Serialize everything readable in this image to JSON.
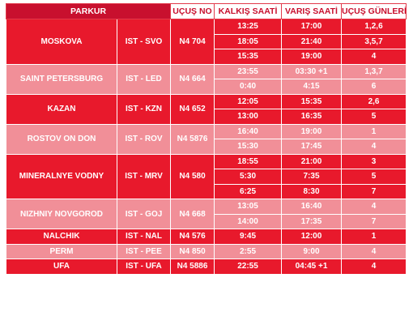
{
  "headers": {
    "route": "PARKUR",
    "flight_no": "UÇUŞ NO",
    "departure": "KALKIŞ SAATİ",
    "arrival": "VARIŞ SAATİ",
    "days": "UÇUŞ GÜNLERİ"
  },
  "colors": {
    "header_red": "#c8102e",
    "dark_row": "#e8192c",
    "light_row": "#f18f98"
  },
  "routes": [
    {
      "city": "MOSKOVA",
      "code": "IST - SVO",
      "flight": "N4 704",
      "shade": "dark",
      "flights": [
        {
          "dep": "13:25",
          "arr": "17:00",
          "days": "1,2,6"
        },
        {
          "dep": "18:05",
          "arr": "21:40",
          "days": "3,5,7"
        },
        {
          "dep": "15:35",
          "arr": "19:00",
          "days": "4"
        }
      ]
    },
    {
      "city": "SAINT PETERSBURG",
      "code": "IST - LED",
      "flight": "N4 664",
      "shade": "light",
      "flights": [
        {
          "dep": "23:55",
          "arr": "03:30 +1",
          "days": "1,3,7"
        },
        {
          "dep": "0:40",
          "arr": "4:15",
          "days": "6"
        }
      ]
    },
    {
      "city": "KAZAN",
      "code": "IST - KZN",
      "flight": "N4 652",
      "shade": "dark",
      "flights": [
        {
          "dep": "12:05",
          "arr": "15:35",
          "days": "2,6"
        },
        {
          "dep": "13:00",
          "arr": "16:35",
          "days": "5"
        }
      ]
    },
    {
      "city": "ROSTOV ON DON",
      "code": "IST - ROV",
      "flight": "N4 5876",
      "shade": "light",
      "flights": [
        {
          "dep": "16:40",
          "arr": "19:00",
          "days": "1"
        },
        {
          "dep": "15:30",
          "arr": "17:45",
          "days": "4"
        }
      ]
    },
    {
      "city": "MINERALNYE VODNY",
      "code": "IST - MRV",
      "flight": "N4 580",
      "shade": "dark",
      "flights": [
        {
          "dep": "18:55",
          "arr": "21:00",
          "days": "3"
        },
        {
          "dep": "5:30",
          "arr": "7:35",
          "days": "5"
        },
        {
          "dep": "6:25",
          "arr": "8:30",
          "days": "7"
        }
      ]
    },
    {
      "city": "NIZHNIY NOVGOROD",
      "code": "IST - GOJ",
      "flight": "N4 668",
      "shade": "light",
      "flights": [
        {
          "dep": "13:05",
          "arr": "16:40",
          "days": "4"
        },
        {
          "dep": "14:00",
          "arr": "17:35",
          "days": "7"
        }
      ]
    },
    {
      "city": "NALCHIK",
      "code": "IST - NAL",
      "flight": "N4 576",
      "shade": "dark",
      "flights": [
        {
          "dep": "9:45",
          "arr": "12:00",
          "days": "1"
        }
      ]
    },
    {
      "city": "PERM",
      "code": "IST - PEE",
      "flight": "N4 850",
      "shade": "light",
      "flights": [
        {
          "dep": "2:55",
          "arr": "9:00",
          "days": "4"
        }
      ]
    },
    {
      "city": "UFA",
      "code": "IST - UFA",
      "flight": "N4 5886",
      "shade": "dark",
      "flights": [
        {
          "dep": "22:55",
          "arr": "04:45 +1",
          "days": "4"
        }
      ]
    }
  ]
}
